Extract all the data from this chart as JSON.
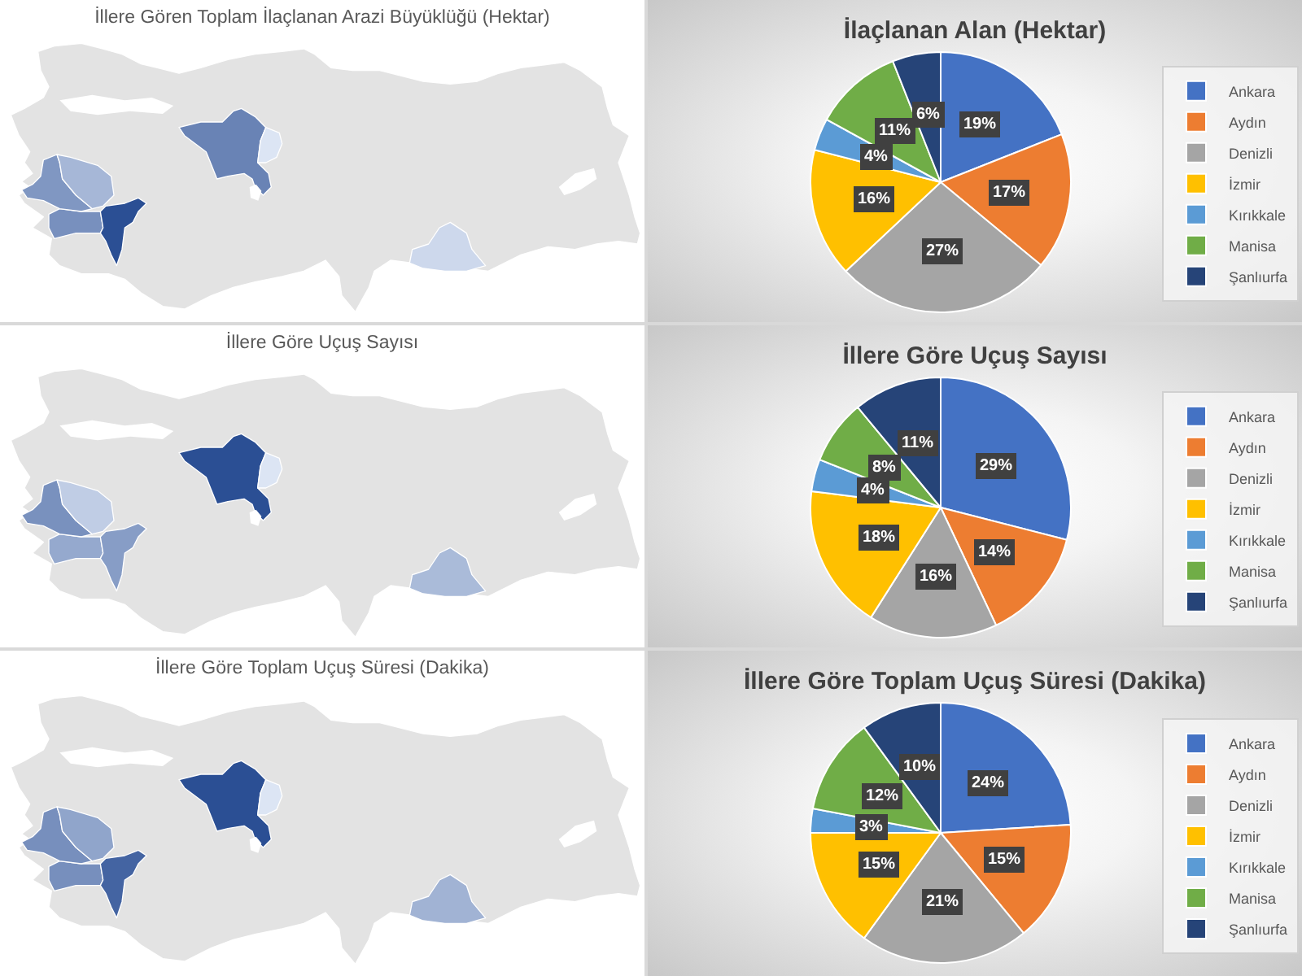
{
  "chart_data": [
    {
      "type": "other",
      "title": "İllere Gören Toplam İlaçlanan Arazi Büyüklüğü (Hektar)"
    },
    {
      "type": "pie",
      "title": "İlaçlanan Alan (Hektar)",
      "categories": [
        "Ankara",
        "Aydın",
        "Denizli",
        "İzmir",
        "Kırıkkale",
        "Manisa",
        "Şanlıurfa"
      ],
      "values": [
        19,
        17,
        27,
        16,
        4,
        11,
        6
      ],
      "colors": [
        "#4472c4",
        "#ed7d31",
        "#a5a5a5",
        "#ffc000",
        "#5b9bd5",
        "#70ad47",
        "#264478"
      ],
      "value_labels": [
        "19%",
        "17%",
        "27%",
        "16%",
        "4%",
        "11%",
        "6%"
      ],
      "legend": "right"
    },
    {
      "type": "other",
      "title": "İllere Göre Uçuş Sayısı"
    },
    {
      "type": "pie",
      "title": "İllere Göre Uçuş Sayısı",
      "categories": [
        "Ankara",
        "Aydın",
        "Denizli",
        "İzmir",
        "Kırıkkale",
        "Manisa",
        "Şanlıurfa"
      ],
      "values": [
        29,
        14,
        16,
        18,
        4,
        8,
        11
      ],
      "colors": [
        "#4472c4",
        "#ed7d31",
        "#a5a5a5",
        "#ffc000",
        "#5b9bd5",
        "#70ad47",
        "#264478"
      ],
      "value_labels": [
        "29%",
        "14%",
        "16%",
        "18%",
        "4%",
        "8%",
        "11%"
      ],
      "legend": "right"
    },
    {
      "type": "other",
      "title": "İllere Göre Toplam Uçuş Süresi (Dakika)"
    },
    {
      "type": "pie",
      "title": "İllere Göre Toplam Uçuş Süresi (Dakika)",
      "categories": [
        "Ankara",
        "Aydın",
        "Denizli",
        "İzmir",
        "Kırıkkale",
        "Manisa",
        "Şanlıurfa"
      ],
      "values": [
        24,
        15,
        21,
        15,
        3,
        12,
        10
      ],
      "colors": [
        "#4472c4",
        "#ed7d31",
        "#a5a5a5",
        "#ffc000",
        "#5b9bd5",
        "#70ad47",
        "#264478"
      ],
      "value_labels": [
        "24%",
        "15%",
        "21%",
        "15%",
        "3%",
        "12%",
        "10%"
      ],
      "legend": "right"
    }
  ]
}
